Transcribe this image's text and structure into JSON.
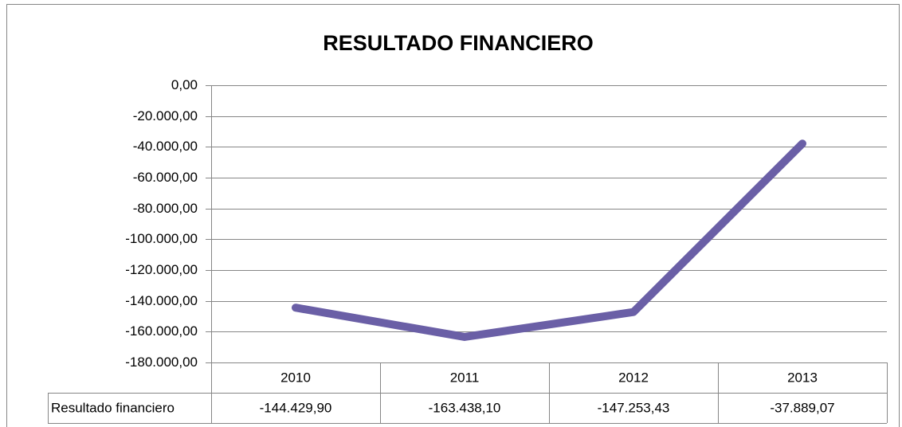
{
  "chart_data": {
    "type": "line",
    "title": "RESULTADO FINANCIERO",
    "categories": [
      "2010",
      "2011",
      "2012",
      "2013"
    ],
    "series": [
      {
        "name": "Resultado financiero",
        "color": "#6a5fa6",
        "values": [
          -144429.9,
          -163438.1,
          -147253.43,
          -37889.07
        ],
        "value_labels": [
          "-144.429,90",
          "-163.438,10",
          "-147.253,43",
          "-37.889,07"
        ]
      }
    ],
    "ylim": [
      -180000,
      0
    ],
    "yticks": [
      {
        "value": 0,
        "label": "0,00"
      },
      {
        "value": -20000,
        "label": "-20.000,00"
      },
      {
        "value": -40000,
        "label": "-40.000,00"
      },
      {
        "value": -60000,
        "label": "-60.000,00"
      },
      {
        "value": -80000,
        "label": "-80.000,00"
      },
      {
        "value": -100000,
        "label": "-100.000,00"
      },
      {
        "value": -120000,
        "label": "-120.000,00"
      },
      {
        "value": -140000,
        "label": "-140.000,00"
      },
      {
        "value": -160000,
        "label": "-160.000,00"
      },
      {
        "value": -180000,
        "label": "-180.000,00"
      }
    ],
    "grid": true
  }
}
